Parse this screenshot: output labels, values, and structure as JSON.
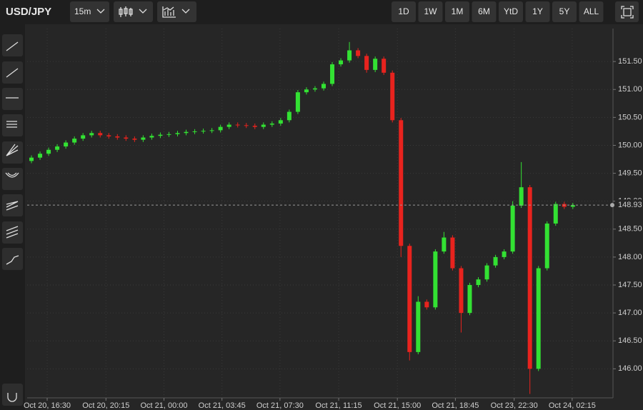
{
  "toolbar": {
    "symbol": "USD/JPY",
    "interval": "15m",
    "ranges": [
      "1D",
      "1W",
      "1M",
      "6M",
      "YtD",
      "1Y",
      "5Y",
      "ALL"
    ]
  },
  "chart_data": {
    "type": "candlestick",
    "up_color": "#33e133",
    "down_color": "#e8231e",
    "last_price": 148.93,
    "open": [
      149.72,
      149.78,
      149.85,
      149.92,
      149.98,
      150.05,
      150.12,
      150.18,
      150.22,
      150.18,
      150.16,
      150.14,
      150.12,
      150.1,
      150.14,
      150.17,
      150.19,
      150.2,
      150.22,
      150.24,
      150.25,
      150.26,
      150.27,
      150.33,
      150.37,
      150.36,
      150.35,
      150.33,
      150.37,
      150.39,
      150.45,
      150.6,
      150.95,
      151.0,
      151.02,
      151.1,
      151.45,
      151.52,
      151.7,
      151.6,
      151.35,
      151.55,
      151.3,
      150.45,
      148.2,
      146.3,
      147.2,
      147.1,
      148.1,
      148.35,
      147.8,
      147.0,
      147.5,
      147.6,
      147.85,
      148.0,
      148.1,
      148.92,
      149.25,
      146.0,
      147.8,
      148.6,
      148.95,
      148.9
    ],
    "high": [
      149.82,
      149.89,
      149.96,
      150.02,
      150.09,
      150.16,
      150.22,
      150.26,
      150.26,
      150.22,
      150.2,
      150.18,
      150.16,
      150.18,
      150.21,
      150.23,
      150.24,
      150.26,
      150.28,
      150.29,
      150.3,
      150.31,
      150.37,
      150.41,
      150.41,
      150.4,
      150.39,
      150.41,
      150.43,
      150.49,
      150.64,
      150.99,
      151.04,
      151.06,
      151.14,
      151.49,
      151.56,
      151.85,
      151.74,
      151.64,
      151.59,
      151.59,
      151.34,
      150.49,
      148.24,
      147.3,
      147.24,
      148.14,
      148.45,
      148.39,
      147.84,
      147.54,
      147.64,
      147.89,
      148.04,
      148.14,
      149.0,
      149.7,
      149.29,
      147.84,
      148.64,
      148.99,
      148.99,
      148.97
    ],
    "low": [
      149.68,
      149.74,
      149.81,
      149.88,
      149.94,
      150.01,
      150.08,
      150.14,
      150.14,
      150.12,
      150.1,
      150.08,
      150.06,
      150.06,
      150.1,
      150.13,
      150.15,
      150.16,
      150.18,
      150.2,
      150.21,
      150.22,
      150.23,
      150.29,
      150.32,
      150.31,
      150.29,
      150.29,
      150.33,
      150.35,
      150.41,
      150.56,
      150.91,
      150.96,
      150.98,
      151.06,
      151.41,
      151.48,
      151.56,
      151.3,
      151.31,
      151.26,
      150.41,
      148.0,
      146.15,
      146.26,
      147.06,
      147.06,
      148.06,
      147.76,
      146.65,
      146.96,
      147.46,
      147.56,
      147.81,
      147.96,
      148.06,
      148.88,
      145.55,
      145.96,
      147.76,
      148.56,
      148.86,
      148.86
    ],
    "close": [
      149.78,
      149.85,
      149.92,
      149.98,
      150.05,
      150.12,
      150.18,
      150.22,
      150.18,
      150.16,
      150.14,
      150.12,
      150.1,
      150.14,
      150.17,
      150.19,
      150.2,
      150.22,
      150.24,
      150.25,
      150.26,
      150.27,
      150.33,
      150.37,
      150.36,
      150.35,
      150.33,
      150.37,
      150.39,
      150.45,
      150.6,
      150.95,
      151.0,
      151.02,
      151.1,
      151.45,
      151.52,
      151.7,
      151.6,
      151.35,
      151.55,
      151.3,
      150.45,
      148.2,
      146.3,
      147.2,
      147.1,
      148.1,
      148.35,
      147.8,
      147.0,
      147.5,
      147.6,
      147.85,
      148.0,
      148.1,
      148.92,
      149.25,
      146.0,
      147.8,
      148.6,
      148.95,
      148.9,
      148.93
    ],
    "xlim": [
      -0.5,
      67.67
    ],
    "xticks": [
      {
        "value": 1.83,
        "label": "Oct 20, 16:30"
      },
      {
        "value": 8.67,
        "label": "Oct 20, 20:15"
      },
      {
        "value": 15.42,
        "label": "Oct 21, 00:00"
      },
      {
        "value": 22.17,
        "label": "Oct 21, 03:45"
      },
      {
        "value": 28.92,
        "label": "Oct 21, 07:30"
      },
      {
        "value": 35.75,
        "label": "Oct 21, 11:15"
      },
      {
        "value": 42.58,
        "label": "Oct 21, 15:00"
      },
      {
        "value": 49.33,
        "label": "Oct 21, 18:45"
      },
      {
        "value": 56.17,
        "label": "Oct 23, 22:30"
      },
      {
        "value": 62.92,
        "label": "Oct 24, 02:15"
      }
    ],
    "ylim": [
      145.48,
      152.09
    ],
    "yticks": [
      {
        "value": 146,
        "label": "146.00"
      },
      {
        "value": 146.5,
        "label": "146.50"
      },
      {
        "value": 147,
        "label": "147.00"
      },
      {
        "value": 147.5,
        "label": "147.50"
      },
      {
        "value": 148,
        "label": "148.00"
      },
      {
        "value": 148.5,
        "label": "148.50"
      },
      {
        "value": 149,
        "label": "149.00"
      },
      {
        "value": 149.5,
        "label": "149.50"
      },
      {
        "value": 150,
        "label": "150.00"
      },
      {
        "value": 150.5,
        "label": "150.50"
      },
      {
        "value": 151,
        "label": "151.00"
      },
      {
        "value": 151.5,
        "label": "151.50"
      }
    ],
    "grid": true
  }
}
